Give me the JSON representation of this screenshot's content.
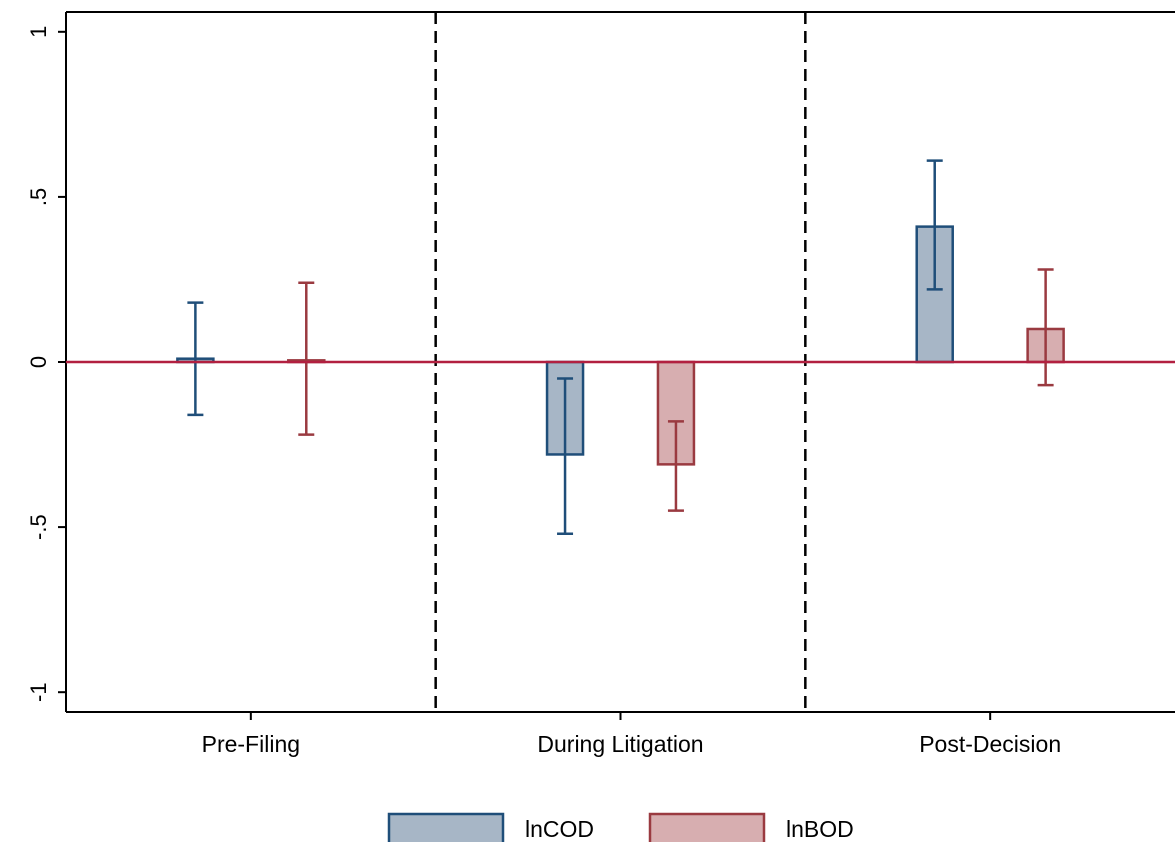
{
  "chart_data": {
    "type": "bar",
    "categories": [
      "Pre-Filing",
      "During Litigation",
      "Post-Decision"
    ],
    "series": [
      {
        "name": "lnCOD",
        "values": [
          0.01,
          -0.28,
          0.41
        ],
        "ci_low": [
          -0.16,
          -0.52,
          0.22
        ],
        "ci_high": [
          0.18,
          -0.05,
          0.61
        ],
        "fill": "#a7b6c6",
        "stroke": "#1f4e79"
      },
      {
        "name": "lnBOD",
        "values": [
          0.005,
          -0.31,
          0.1
        ],
        "ci_low": [
          -0.22,
          -0.45,
          -0.07
        ],
        "ci_high": [
          0.24,
          -0.18,
          0.28
        ],
        "fill": "#d7aeb0",
        "stroke": "#9a3a40"
      }
    ],
    "ylim": [
      -1.06,
      1.06
    ],
    "yticks": [
      {
        "value": -1,
        "label": "-1"
      },
      {
        "value": -0.5,
        "label": "-.5"
      },
      {
        "value": 0,
        "label": "0"
      },
      {
        "value": 0.5,
        "label": ".5"
      },
      {
        "value": 1,
        "label": "1"
      }
    ],
    "reference_line": {
      "value": 0,
      "color": "#b22040"
    },
    "period_separators": "dashed, between categories",
    "grid": false,
    "legend_position": "bottom"
  }
}
